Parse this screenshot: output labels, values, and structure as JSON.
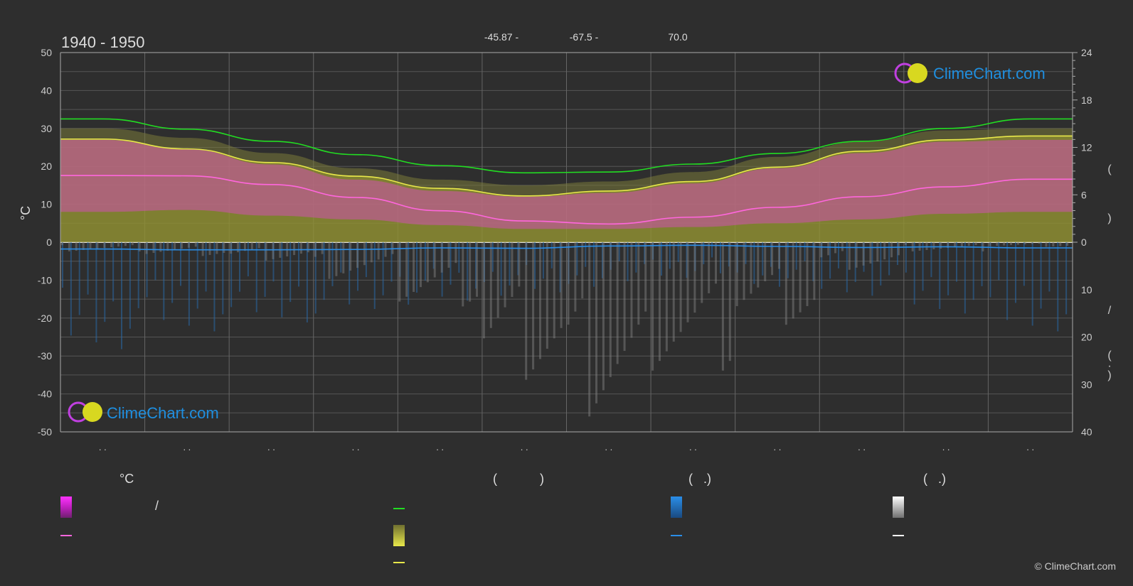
{
  "period": "1940 - 1950",
  "top_labels": [
    "-45.87 -",
    "-67.5 -",
    "70.0"
  ],
  "copyright": "© ClimeChart.com",
  "logo_text": "ClimeChart.com",
  "colors": {
    "background": "#2e2e2e",
    "daylight": "#22dd22",
    "sunshine": "#e8e84a",
    "temp_mean": "#ff66dd",
    "temp_range": "#d040b0",
    "rain": "#2a8ee8",
    "snow": "#d8d8d8",
    "logo_blue": "#1f8fe0"
  },
  "legend": {
    "col1_head": "°C",
    "col1_slash": "/",
    "col2_head": "(            )",
    "col3_head": "(   .)",
    "col4_head": "(   .)"
  },
  "right_axis_glyphs": [
    "(",
    ")",
    "/",
    "(",
    "·",
    ")"
  ],
  "chart_data": {
    "type": "line",
    "x": [
      1,
      2,
      3,
      4,
      5,
      6,
      7,
      8,
      9,
      10,
      11,
      12
    ],
    "tick_labels": [
      ". .",
      ". .",
      ". .",
      ". .",
      ". .",
      ". .",
      ". .",
      ". .",
      ". .",
      ". .",
      ". .",
      ". ."
    ],
    "ylabel": "°C",
    "ylim": [
      -50,
      50
    ],
    "y_ticks": [
      50,
      40,
      30,
      20,
      10,
      0,
      -10,
      -20,
      -30,
      -40,
      -50
    ],
    "right_axis_top": {
      "range": [
        0,
        24
      ],
      "ticks": [
        24,
        18,
        12,
        6,
        0
      ]
    },
    "right_axis_bottom": {
      "range": [
        0,
        40
      ],
      "ticks": [
        0,
        10,
        20,
        30,
        40
      ]
    },
    "series": [
      {
        "key": "daylight",
        "values": [
          32.5,
          29.8,
          26.6,
          23.1,
          20.2,
          18.3,
          18.5,
          20.6,
          23.4,
          26.6,
          30.0,
          32.5
        ],
        "color": "#22dd22"
      },
      {
        "key": "sunshine",
        "values": [
          27.2,
          24.6,
          21.0,
          17.4,
          14.2,
          12.2,
          13.5,
          16.0,
          19.8,
          24.0,
          27.0,
          28.0
        ],
        "color": "#e8e84a"
      },
      {
        "key": "temp_mean",
        "values": [
          17.6,
          17.5,
          15.2,
          11.8,
          8.3,
          5.6,
          4.8,
          6.6,
          9.2,
          12.0,
          14.6,
          16.6
        ],
        "color": "#ff66dd"
      },
      {
        "key": "precip",
        "values": [
          -1.8,
          -2.0,
          -2.0,
          -1.9,
          -1.5,
          -1.6,
          -1.0,
          -0.8,
          -1.1,
          -1.4,
          -1.2,
          -1.5
        ],
        "color": "#2a8ee8"
      }
    ],
    "temp_max_band": [
      30,
      27.5,
      23.5,
      19.5,
      16.5,
      15,
      16,
      18.5,
      22.5,
      26.5,
      29.5,
      30
    ],
    "temp_min_band": [
      5,
      5.5,
      4,
      3,
      1.5,
      0.5,
      0.5,
      1,
      2,
      3,
      4.5,
      5
    ],
    "rain_depth": [
      12,
      10,
      9,
      8,
      7,
      6,
      5,
      4,
      5,
      6,
      8,
      10
    ],
    "snow_depth": [
      2,
      3,
      4,
      8,
      14,
      30,
      38,
      28,
      18,
      6,
      2,
      1
    ]
  }
}
